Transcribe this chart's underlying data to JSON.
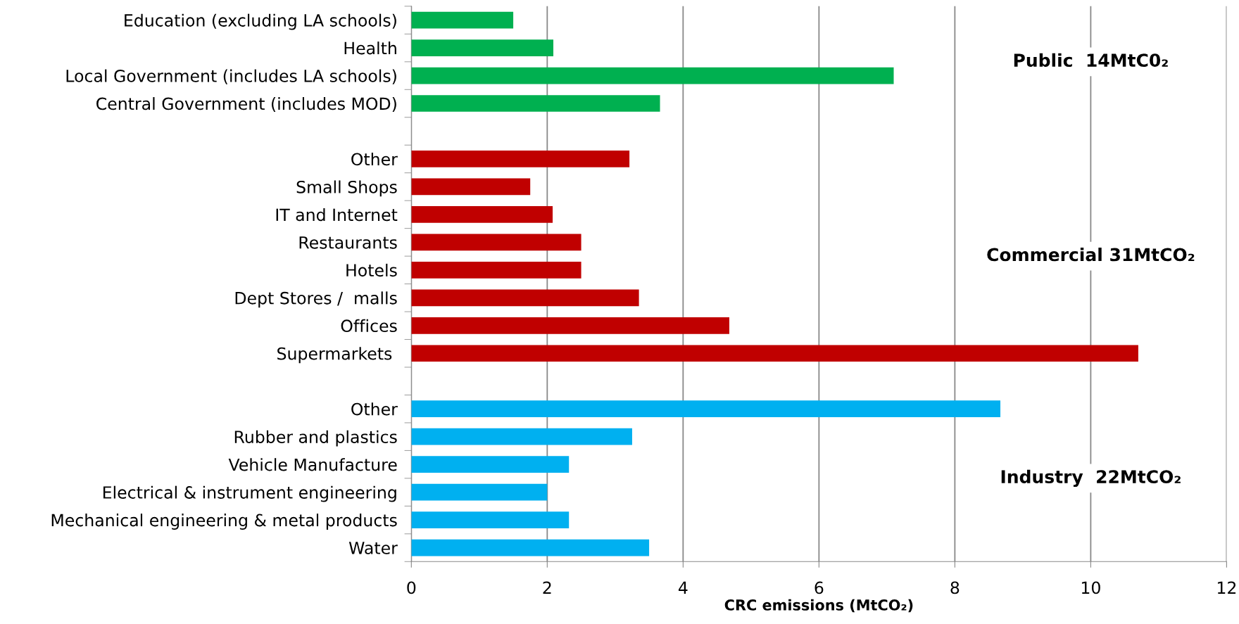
{
  "chart_data": {
    "type": "bar",
    "orientation": "horizontal",
    "xlabel": "CRC emissions (MtCO₂)",
    "categories": [
      "Education (excluding LA schools)",
      "Health",
      "Local Government (includes LA schools)",
      "Central Government (includes MOD)",
      null,
      "Other",
      "Small Shops",
      "IT and Internet",
      "Restaurants",
      "Hotels",
      "Dept Stores /  malls",
      "Offices",
      "Supermarkets ",
      null,
      "Other",
      "Rubber and plastics",
      "Vehicle Manufacture",
      "Electrical & instrument engineering",
      "Mechanical engineering & metal products",
      "Water"
    ],
    "values": [
      1.5,
      2.09,
      7.1,
      3.66,
      null,
      3.21,
      1.75,
      2.08,
      2.5,
      2.5,
      3.35,
      4.68,
      10.7,
      null,
      8.67,
      3.25,
      2.32,
      2.0,
      2.32,
      3.5
    ],
    "colors": [
      "#00b050",
      "#00b050",
      "#00b050",
      "#00b050",
      null,
      "#c00000",
      "#c00000",
      "#c00000",
      "#c00000",
      "#c00000",
      "#c00000",
      "#c00000",
      "#c00000",
      null,
      "#00b0f0",
      "#00b0f0",
      "#00b0f0",
      "#00b0f0",
      "#00b0f0",
      "#00b0f0"
    ],
    "xlim": [
      0,
      12
    ],
    "xticks": [
      0,
      2,
      4,
      6,
      8,
      10,
      12
    ],
    "grid": "x",
    "annotations": [
      "Public  14MtC0₂",
      "Commercial 31MtCO₂",
      "Industry  22MtCO₂"
    ]
  }
}
